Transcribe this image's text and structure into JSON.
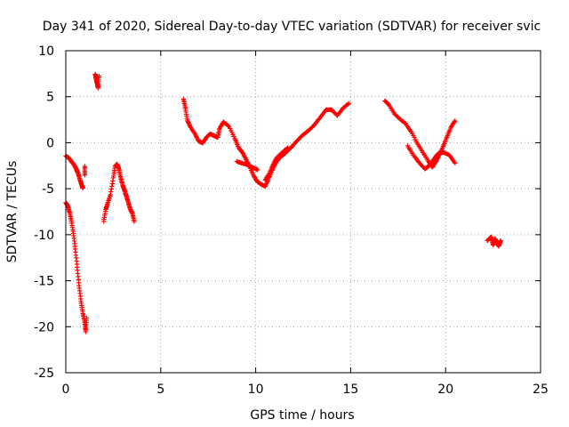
{
  "chart_data": {
    "type": "scatter",
    "title": "Day 341 of 2020, Sidereal Day-to-day VTEC variation (SDTVAR) for receiver svic",
    "xlabel": "GPS time / hours",
    "ylabel": "SDTVAR / TECUs",
    "xlim": [
      0,
      25
    ],
    "ylim": [
      -25,
      10
    ],
    "xticks": [
      "0",
      "5",
      "10",
      "15",
      "20",
      "25"
    ],
    "yticks": [
      "10",
      "5",
      "0",
      "-5",
      "-10",
      "-15",
      "-20",
      "-25"
    ],
    "grid": true,
    "marker": "+",
    "series": [
      {
        "name": "SDTVAR",
        "color": "#ff0000",
        "segments": [
          [
            [
              0.0,
              -1.4
            ],
            [
              0.15,
              -1.6
            ],
            [
              0.3,
              -2.0
            ],
            [
              0.45,
              -2.4
            ],
            [
              0.55,
              -2.8
            ],
            [
              0.65,
              -3.3
            ],
            [
              0.75,
              -4.0
            ],
            [
              0.85,
              -4.6
            ],
            [
              0.9,
              -4.9
            ]
          ],
          [
            [
              1.0,
              -2.5
            ],
            [
              1.0,
              -3.5
            ]
          ],
          [
            [
              0.0,
              -6.5
            ],
            [
              0.1,
              -6.8
            ],
            [
              0.2,
              -7.5
            ],
            [
              0.3,
              -8.5
            ],
            [
              0.4,
              -9.8
            ],
            [
              0.5,
              -11.5
            ],
            [
              0.6,
              -13.5
            ],
            [
              0.7,
              -15.5
            ],
            [
              0.8,
              -17.2
            ],
            [
              0.9,
              -18.5
            ],
            [
              1.0,
              -19.5
            ],
            [
              1.05,
              -20.5
            ],
            [
              1.1,
              -19.0
            ]
          ],
          [
            [
              1.55,
              7.5
            ],
            [
              1.6,
              7.0
            ],
            [
              1.65,
              6.5
            ],
            [
              1.7,
              6.0
            ],
            [
              1.75,
              7.3
            ]
          ],
          [
            [
              2.0,
              -8.5
            ],
            [
              2.1,
              -7.2
            ],
            [
              2.2,
              -6.6
            ],
            [
              2.35,
              -5.6
            ],
            [
              2.5,
              -3.8
            ],
            [
              2.6,
              -2.5
            ],
            [
              2.7,
              -2.3
            ],
            [
              2.8,
              -2.8
            ],
            [
              2.9,
              -3.8
            ],
            [
              3.0,
              -4.6
            ],
            [
              3.1,
              -5.2
            ],
            [
              3.2,
              -5.8
            ],
            [
              3.3,
              -6.5
            ],
            [
              3.4,
              -7.2
            ],
            [
              3.5,
              -7.6
            ],
            [
              3.6,
              -8.5
            ]
          ],
          [
            [
              6.2,
              4.8
            ],
            [
              6.3,
              3.8
            ],
            [
              6.4,
              2.5
            ],
            [
              6.55,
              1.8
            ],
            [
              6.8,
              1.0
            ],
            [
              7.0,
              0.2
            ],
            [
              7.2,
              0.0
            ],
            [
              7.4,
              0.6
            ],
            [
              7.6,
              1.0
            ],
            [
              7.8,
              0.8
            ],
            [
              8.0,
              0.6
            ],
            [
              8.1,
              1.6
            ],
            [
              8.3,
              2.3
            ],
            [
              8.6,
              1.8
            ],
            [
              8.9,
              0.5
            ],
            [
              9.1,
              -0.5
            ],
            [
              9.3,
              -1.0
            ],
            [
              9.5,
              -1.8
            ],
            [
              9.7,
              -2.6
            ],
            [
              9.9,
              -3.6
            ],
            [
              10.1,
              -4.2
            ],
            [
              10.3,
              -4.5
            ],
            [
              10.5,
              -4.7
            ],
            [
              10.7,
              -3.8
            ],
            [
              10.9,
              -2.8
            ],
            [
              11.1,
              -2.0
            ],
            [
              11.3,
              -1.5
            ],
            [
              11.5,
              -1.2
            ],
            [
              11.7,
              -0.8
            ],
            [
              11.9,
              -0.4
            ],
            [
              12.2,
              0.3
            ],
            [
              12.5,
              0.9
            ],
            [
              12.8,
              1.4
            ],
            [
              13.1,
              2.0
            ],
            [
              13.4,
              2.8
            ],
            [
              13.7,
              3.6
            ],
            [
              14.0,
              3.6
            ],
            [
              14.3,
              3.0
            ],
            [
              14.6,
              3.8
            ],
            [
              14.9,
              4.3
            ]
          ],
          [
            [
              9.0,
              -2.0
            ],
            [
              9.3,
              -2.2
            ],
            [
              9.6,
              -2.4
            ],
            [
              9.9,
              -2.7
            ],
            [
              10.1,
              -2.9
            ]
          ],
          [
            [
              10.5,
              -4.0
            ],
            [
              10.7,
              -3.4
            ],
            [
              10.9,
              -2.4
            ],
            [
              11.1,
              -1.6
            ],
            [
              11.4,
              -1.0
            ],
            [
              11.7,
              -0.5
            ]
          ],
          [
            [
              16.8,
              4.6
            ],
            [
              17.0,
              4.2
            ],
            [
              17.3,
              3.2
            ],
            [
              17.6,
              2.6
            ],
            [
              17.9,
              2.1
            ],
            [
              18.2,
              1.2
            ],
            [
              18.5,
              0.0
            ],
            [
              18.8,
              -1.0
            ],
            [
              19.1,
              -2.0
            ],
            [
              19.3,
              -2.6
            ],
            [
              19.5,
              -2.0
            ],
            [
              19.7,
              -1.2
            ],
            [
              19.9,
              -0.2
            ],
            [
              20.1,
              0.8
            ],
            [
              20.3,
              1.8
            ],
            [
              20.5,
              2.4
            ]
          ],
          [
            [
              18.0,
              -0.3
            ],
            [
              18.3,
              -1.3
            ],
            [
              18.6,
              -2.1
            ],
            [
              18.9,
              -2.8
            ],
            [
              19.1,
              -2.5
            ],
            [
              19.3,
              -2.0
            ],
            [
              19.5,
              -1.4
            ],
            [
              19.7,
              -1.0
            ],
            [
              19.9,
              -1.0
            ],
            [
              20.2,
              -1.3
            ],
            [
              20.5,
              -2.2
            ]
          ],
          [
            [
              22.2,
              -10.6
            ],
            [
              22.4,
              -10.2
            ],
            [
              22.5,
              -11.1
            ],
            [
              22.6,
              -10.4
            ],
            [
              22.7,
              -10.8
            ],
            [
              22.8,
              -11.2
            ],
            [
              22.9,
              -10.6
            ]
          ]
        ]
      }
    ]
  }
}
